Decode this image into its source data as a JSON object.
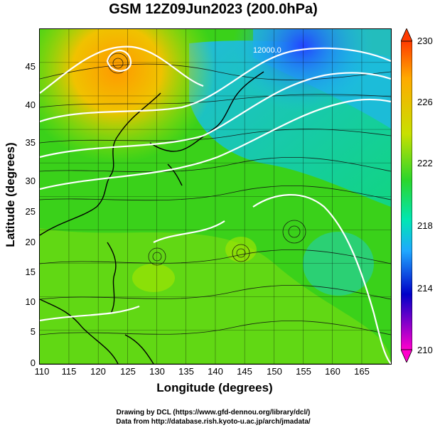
{
  "title": "GSM 12Z09Jun2023 (200.0hPa)",
  "x_axis": {
    "label": "Longitude (degrees)",
    "ticks": [
      "110",
      "115",
      "120",
      "125",
      "130",
      "135",
      "140",
      "145",
      "150",
      "155",
      "160",
      "165"
    ]
  },
  "y_axis": {
    "label": "Latitude  (degrees)",
    "ticks": [
      "0",
      "5",
      "10",
      "15",
      "20",
      "25",
      "30",
      "35",
      "40",
      "45"
    ]
  },
  "colorbar": {
    "ticks": [
      "210",
      "214",
      "218",
      "222",
      "226",
      "230"
    ],
    "colors": [
      "#ff00cc",
      "#0000c8",
      "#1fa8ff",
      "#00e6b4",
      "#2bd62b",
      "#a6e600",
      "#ffaa00",
      "#ff3b00"
    ]
  },
  "contour_label": "12000.0",
  "credits": {
    "line1": "Drawing by DCL (https://www.gfd-dennou.org/library/dcl/)",
    "line2": "Data from http://database.rish.kyoto-u.ac.jp/arch/jmadata/"
  }
}
